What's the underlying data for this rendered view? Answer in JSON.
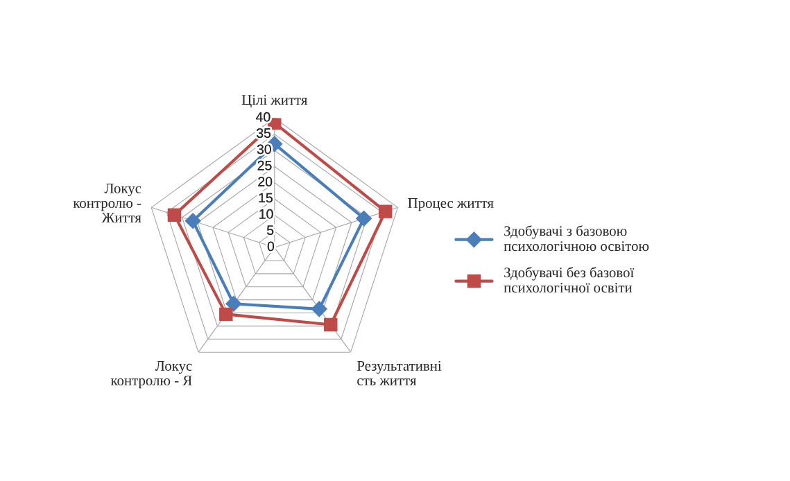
{
  "chart_data": {
    "type": "radar",
    "categories": [
      "Цілі життя",
      "Процес життя",
      "Результативні\nсть життя",
      "Локус\nконтролю - Я",
      "Локус\nконтролю -\nЖиття"
    ],
    "ylim": [
      0,
      40
    ],
    "yticks": [
      0,
      5,
      10,
      15,
      20,
      25,
      30,
      35,
      40
    ],
    "grid": true,
    "legend": "right",
    "series": [
      {
        "name": "Здобувачі з базовою\nпсихологічною освітою",
        "color": "#4a7ebb",
        "marker": "diamond",
        "values": [
          32,
          29,
          23.5,
          21.5,
          26.5
        ]
      },
      {
        "name": "Здобувачі без базової\nпсихологічної освіти",
        "color": "#be4b48",
        "marker": "square",
        "values": [
          38.5,
          36,
          29.5,
          25.5,
          32.5
        ]
      }
    ]
  }
}
